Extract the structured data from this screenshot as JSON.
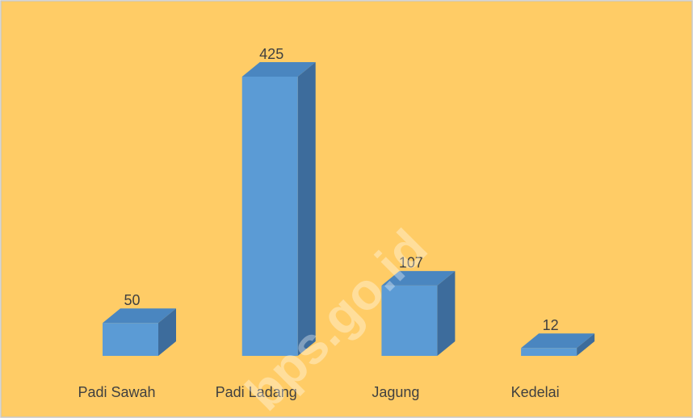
{
  "chart_data": {
    "type": "bar3d",
    "categories": [
      "Padi Sawah",
      "Padi Ladang",
      "Jagung",
      "Kedelai"
    ],
    "values": [
      50,
      425,
      107,
      12
    ],
    "color": "#5b9bd5",
    "watermark": "bps.go.id"
  }
}
